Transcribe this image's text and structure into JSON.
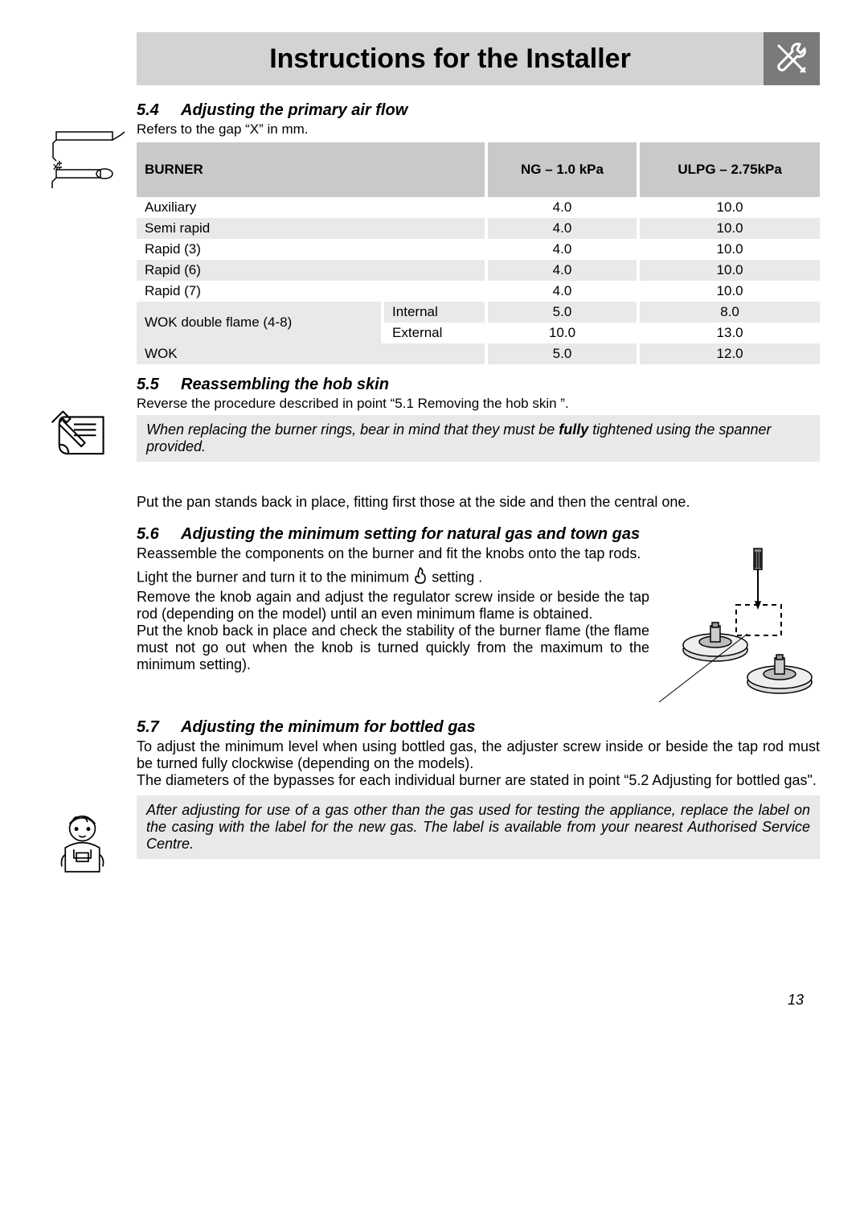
{
  "header": {
    "title": "Instructions for the Installer"
  },
  "sec54": {
    "num": "5.4",
    "title": "Adjusting the primary air flow",
    "caption": "Refers to the gap “X” in mm."
  },
  "table": {
    "headers": {
      "c1": "BURNER",
      "c2": "NG – 1.0 kPa",
      "c3": "ULPG – 2.75kPa"
    },
    "rows": [
      {
        "name": "Auxiliary",
        "sub": "",
        "ng": "4.0",
        "ulpg": "10.0",
        "even": false
      },
      {
        "name": "Semi rapid",
        "sub": "",
        "ng": "4.0",
        "ulpg": "10.0",
        "even": true
      },
      {
        "name": "Rapid (3)",
        "sub": "",
        "ng": "4.0",
        "ulpg": "10.0",
        "even": false
      },
      {
        "name": "Rapid (6)",
        "sub": "",
        "ng": "4.0",
        "ulpg": "10.0",
        "even": true
      },
      {
        "name": "Rapid (7)",
        "sub": "",
        "ng": "4.0",
        "ulpg": "10.0",
        "even": false
      },
      {
        "name": "WOK double flame (4-8)",
        "sub": "Internal",
        "ng": "5.0",
        "ulpg": "8.0",
        "even": true,
        "rowspan": 2
      },
      {
        "name": "",
        "sub": "External",
        "ng": "10.0",
        "ulpg": "13.0",
        "even": false,
        "skipname": true
      },
      {
        "name": "WOK",
        "sub": "",
        "ng": "5.0",
        "ulpg": "12.0",
        "even": true
      }
    ]
  },
  "sec55": {
    "num": "5.5",
    "title": "Reassembling the hob skin",
    "line1": "Reverse the procedure described in point “5.1 Removing the hob skin ”.",
    "note_a": "When replacing the burner rings, bear in mind that they must be ",
    "note_b": "fully",
    "note_c": " tightened using the spanner provided.",
    "line2": "Put the pan stands back in place, fitting first those at the side and then the central one."
  },
  "sec56": {
    "num": "5.6",
    "title": "Adjusting the minimum setting for natural gas and town gas",
    "p1": "Reassemble the components on the burner and fit the knobs onto the tap rods.",
    "p2a": "Light the burner and turn it to the minimum ",
    "p2b": " setting .",
    "p3": "Remove the knob again and adjust the regulator screw inside or beside the tap rod (depending on the model) until an even minimum flame is obtained.",
    "p4": "Put the knob back in place and check the stability of the burner flame (the flame must not go out when the knob is turned quickly from the maximum to the minimum setting)."
  },
  "sec57": {
    "num": "5.7",
    "title": "Adjusting the minimum for bottled gas",
    "p1": "To adjust the minimum level when using bottled gas, the adjuster screw inside or beside the tap rod must be turned fully clockwise (depending on the models).",
    "p2": "The diameters of the bypasses for each individual burner are stated in point “5.2 Adjusting for bottled gas\".",
    "note": "After adjusting for use of a gas other than the gas used for testing the appliance, replace the label on the casing with the label for the new gas. The label is available from your nearest Authorised Service Centre."
  },
  "page": "13"
}
